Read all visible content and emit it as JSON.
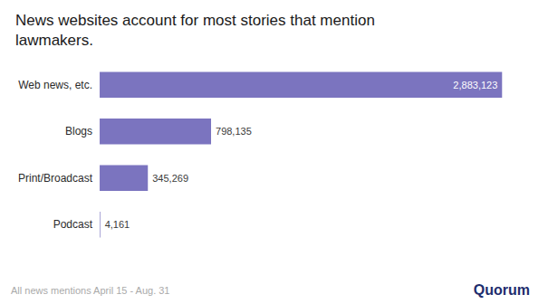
{
  "chart_data": {
    "type": "bar",
    "orientation": "horizontal",
    "title": "News websites account for most stories that mention lawmakers.",
    "categories": [
      "Web news, etc.",
      "Blogs",
      "Print/Broadcast",
      "Podcast"
    ],
    "values": [
      2883123,
      798135,
      345269,
      4161
    ],
    "value_labels": [
      "2,883,123",
      "798,135",
      "345,269",
      "4,161"
    ],
    "data_labels": true,
    "color": "#7b74bf",
    "xlim": [
      0,
      3050000
    ],
    "grid": false,
    "tick_labels": "y",
    "annotations": [
      "All news mentions April 15 - Aug. 31",
      "Quorum"
    ]
  }
}
